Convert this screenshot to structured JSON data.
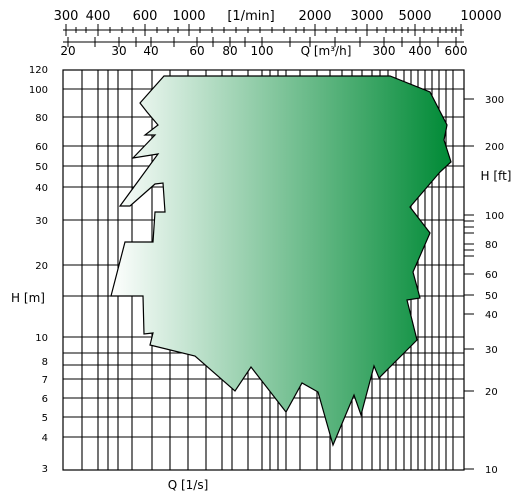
{
  "chart_data": {
    "type": "area",
    "title": "",
    "x_axes": {
      "top_primary": {
        "label": "[1/min]",
        "ticks": [
          "300",
          "400",
          "600",
          "1000",
          "2000",
          "3000",
          "5000",
          "10000"
        ]
      },
      "top_secondary": {
        "label": "Q [m³/h]",
        "ticks": [
          "20",
          "30",
          "40",
          "60",
          "80",
          "100",
          "300",
          "400",
          "600"
        ]
      },
      "bottom": {
        "label": "Q [1/s]"
      }
    },
    "y_axes": {
      "left": {
        "label": "H [m]",
        "ticks": [
          "120",
          "100",
          "80",
          "60",
          "50",
          "40",
          "30",
          "20",
          "10",
          "8",
          "7",
          "6",
          "5",
          "4",
          "3"
        ],
        "range": [
          3,
          120
        ],
        "scale": "log"
      },
      "right": {
        "label": "H [ft]",
        "ticks": [
          "300",
          "200",
          "100",
          "80",
          "60",
          "50",
          "40",
          "30",
          "20",
          "10"
        ],
        "scale": "log"
      }
    },
    "region": {
      "description": "pump performance envelope",
      "gradient_from": "#ffffff",
      "gradient_to": "#008a36",
      "outline": "#000000"
    }
  }
}
